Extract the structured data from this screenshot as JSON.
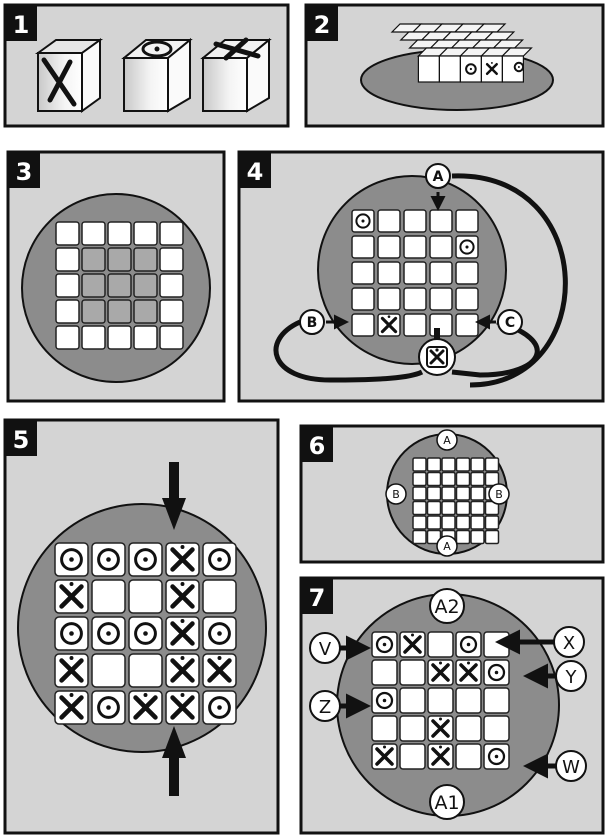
{
  "panels": [
    {
      "id": "p1",
      "label": "1"
    },
    {
      "id": "p2",
      "label": "2"
    },
    {
      "id": "p3",
      "label": "3"
    },
    {
      "id": "p4",
      "label": "4"
    },
    {
      "id": "p5",
      "label": "5"
    },
    {
      "id": "p6",
      "label": "6"
    },
    {
      "id": "p7",
      "label": "7"
    }
  ],
  "panel4": {
    "grid": [
      [
        "dot",
        "",
        "",
        "",
        ""
      ],
      [
        "",
        "",
        "",
        "",
        "dot"
      ],
      [
        "",
        "",
        "",
        "",
        ""
      ],
      [
        "",
        "",
        "",
        "",
        ""
      ],
      [
        "",
        "x",
        "",
        "",
        ""
      ]
    ],
    "callouts": {
      "a": "A",
      "b": "B",
      "c": "C"
    }
  },
  "panel5": {
    "grid": [
      [
        "dot",
        "dot",
        "dot",
        "x",
        "dot"
      ],
      [
        "x",
        "",
        "",
        "x",
        ""
      ],
      [
        "dot",
        "dot",
        "dot",
        "x",
        "dot"
      ],
      [
        "x",
        "",
        "",
        "x",
        "x"
      ],
      [
        "x",
        "dot",
        "x",
        "x",
        "dot"
      ]
    ]
  },
  "panel6": {
    "labels": {
      "top": "A",
      "bottom": "A",
      "left": "B",
      "right": "B"
    }
  },
  "panel7": {
    "grid": [
      [
        "dot",
        "x",
        "",
        "dot",
        ""
      ],
      [
        "",
        "",
        "x",
        "x",
        "dot"
      ],
      [
        "dot",
        "",
        "",
        "",
        ""
      ],
      [
        "",
        "",
        "x",
        "",
        ""
      ],
      [
        "x",
        "",
        "x",
        "",
        "dot"
      ]
    ],
    "labels": {
      "top": "A2",
      "bottom": "A1",
      "v": "V",
      "x": "X",
      "y": "Y",
      "z": "Z",
      "w": "W"
    }
  },
  "colors": {
    "panel_bg": "#d4d4d4",
    "circle": "#8c8c8c",
    "tile": "#ffffff",
    "tile_dark": "#a9a9a9",
    "ink": "#111111"
  }
}
